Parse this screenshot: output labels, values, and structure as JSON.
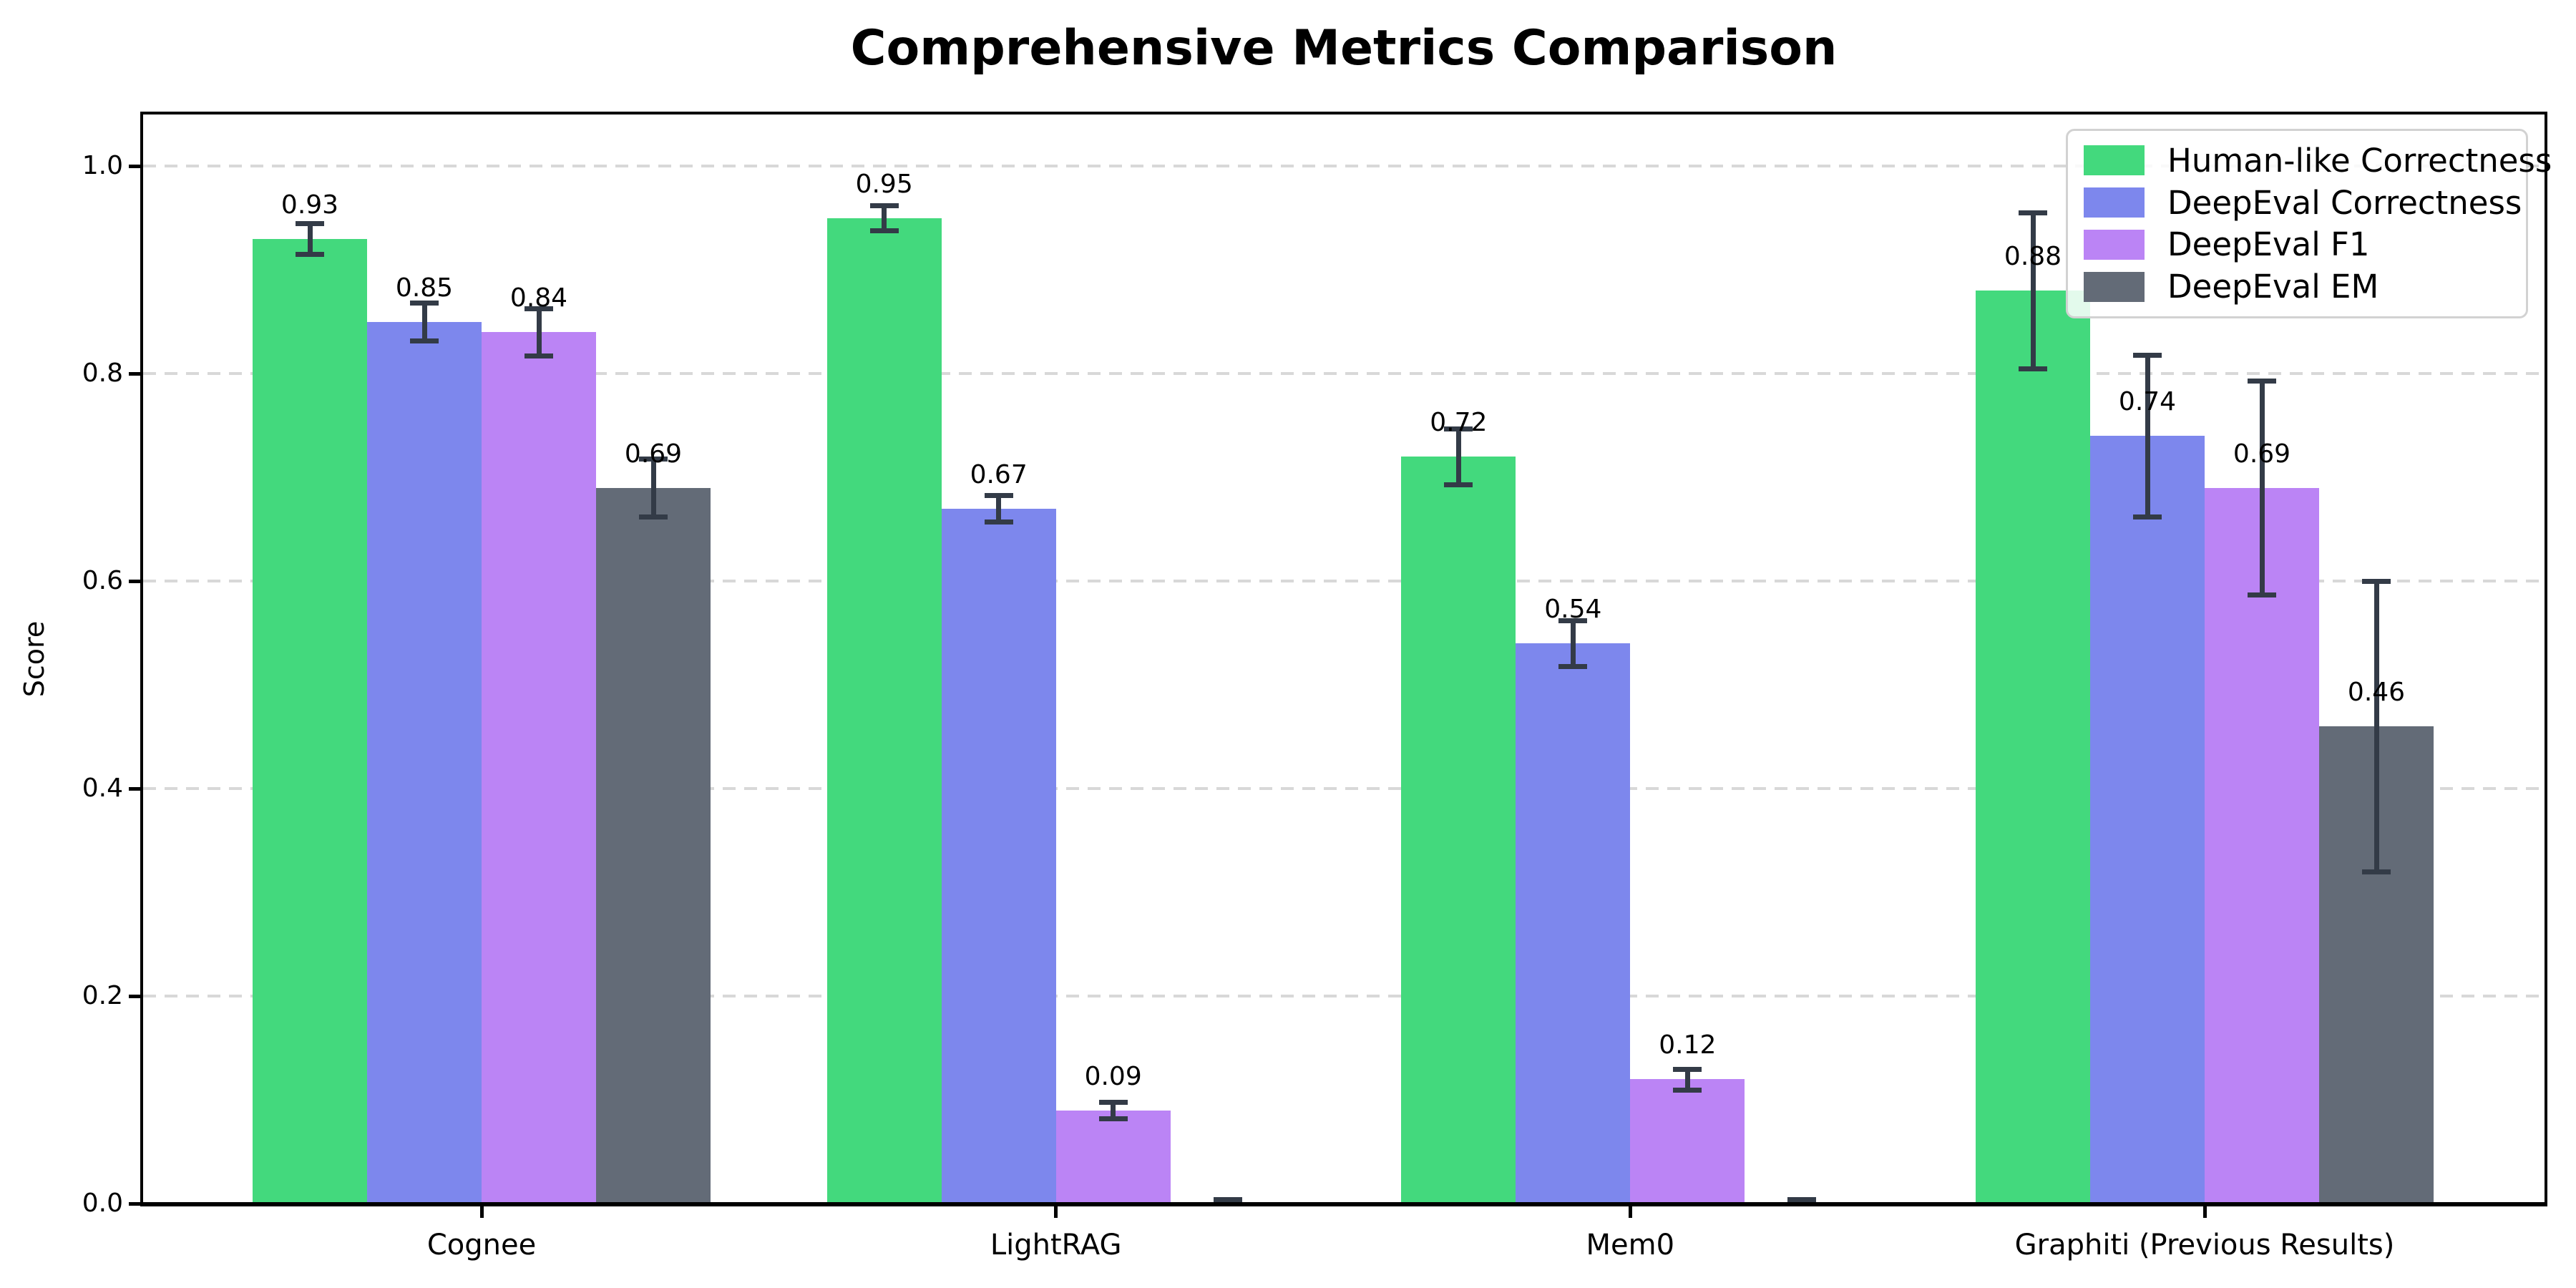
{
  "chart_data": {
    "type": "bar",
    "title": "Comprehensive Metrics Comparison",
    "xlabel": "",
    "ylabel": "Score",
    "ylim": [
      0,
      1.05
    ],
    "ytick_values": [
      0.0,
      0.2,
      0.4,
      0.6,
      0.8,
      1.0
    ],
    "ytick_labels": [
      "0.0",
      "0.2",
      "0.4",
      "0.6",
      "0.8",
      "1.0"
    ],
    "grid": "horizontal-dashed",
    "legend_position": "upper-right",
    "categories": [
      "Cognee",
      "LightRAG",
      "Mem0",
      "Graphiti (Previous Results)"
    ],
    "series": [
      {
        "name": "Human-like Correctness",
        "color": "#43d97d",
        "values": [
          0.93,
          0.95,
          0.72,
          0.88
        ],
        "errors": [
          0.015,
          0.012,
          0.027,
          0.075
        ],
        "bar_labels": [
          "0.93",
          "0.95",
          "0.72",
          "0.88"
        ]
      },
      {
        "name": "DeepEval Correctness",
        "color": "#7d87ed",
        "values": [
          0.85,
          0.67,
          0.54,
          0.74
        ],
        "errors": [
          0.018,
          0.013,
          0.022,
          0.078
        ],
        "bar_labels": [
          "0.85",
          "0.67",
          "0.54",
          "0.74"
        ]
      },
      {
        "name": "DeepEval F1",
        "color": "#bb84f5",
        "values": [
          0.84,
          0.09,
          0.12,
          0.69
        ],
        "errors": [
          0.023,
          0.008,
          0.01,
          0.103
        ],
        "bar_labels": [
          "0.84",
          "0.09",
          "0.12",
          "0.69"
        ]
      },
      {
        "name": "DeepEval EM",
        "color": "#636b77",
        "values": [
          0.69,
          0.0,
          0.0,
          0.46
        ],
        "errors": [
          0.028,
          0.004,
          0.004,
          0.14
        ],
        "bar_labels": [
          "0.69",
          null,
          null,
          "0.46"
        ]
      }
    ],
    "error_bar_color": "#333b47",
    "grid_color": "#d8d8d8",
    "axis_color": "#000000",
    "background_color": "#ffffff"
  }
}
